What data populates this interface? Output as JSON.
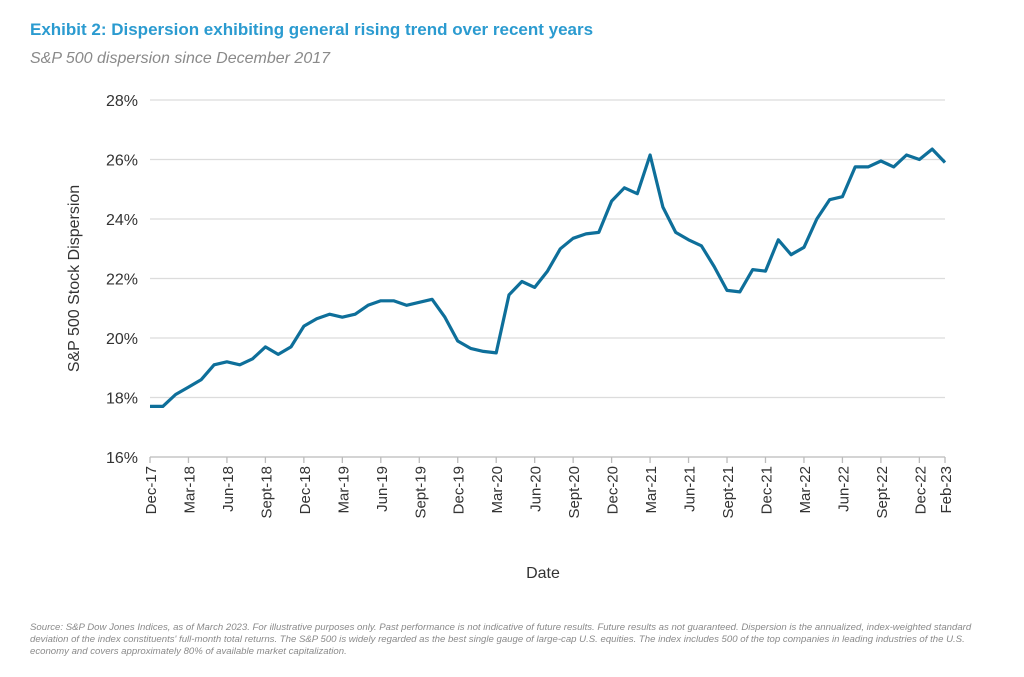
{
  "title": "Exhibit 2: Dispersion exhibiting general rising trend over recent years",
  "subtitle": "S&P 500 dispersion since December 2017",
  "footnote": "Source: S&P Dow Jones Indices, as of March 2023. For illustrative purposes only. Past performance is not indicative of future results. Future results as not guaranteed. Dispersion is the annualized, index-weighted standard deviation of the index constituents' full-month total returns. The S&P 500 is widely regarded as the best single gauge of large-cap U.S. equities. The index includes 500 of the top companies in leading industries of the U.S. economy and covers approximately 80% of available market capitalization.",
  "chart_data": {
    "type": "line",
    "xlabel": "Date",
    "ylabel": "S&P 500 Stock Dispersion",
    "ylim": [
      16,
      28
    ],
    "yticks": [
      "16%",
      "18%",
      "20%",
      "22%",
      "24%",
      "26%",
      "28%"
    ],
    "xticks": [
      "Dec-17",
      "Mar-18",
      "Jun-18",
      "Sept-18",
      "Dec-18",
      "Mar-19",
      "Jun-19",
      "Sept-19",
      "Dec-19",
      "Mar-20",
      "Jun-20",
      "Sept-20",
      "Dec-20",
      "Mar-21",
      "Jun-21",
      "Sept-21",
      "Dec-21",
      "Mar-22",
      "Jun-22",
      "Sept-22",
      "Dec-22",
      "Feb-23"
    ],
    "x_range": [
      "Dec-17",
      "Feb-23"
    ],
    "frequency": "monthly",
    "grid": true,
    "color": "#0e6f9a",
    "values": [
      17.7,
      17.7,
      18.1,
      18.35,
      18.6,
      19.1,
      19.2,
      19.1,
      19.3,
      19.7,
      19.45,
      19.7,
      20.4,
      20.65,
      20.8,
      20.7,
      20.8,
      21.1,
      21.25,
      21.25,
      21.1,
      21.2,
      21.3,
      20.7,
      19.9,
      19.65,
      19.55,
      19.5,
      21.45,
      21.9,
      21.7,
      22.25,
      23.0,
      23.35,
      23.5,
      23.55,
      24.6,
      25.05,
      24.85,
      26.15,
      24.4,
      23.55,
      23.3,
      23.1,
      22.4,
      21.6,
      21.55,
      22.3,
      22.25,
      23.3,
      22.8,
      23.05,
      24.0,
      24.65,
      24.75,
      25.75,
      25.75,
      25.95,
      25.75,
      26.15,
      26.0,
      26.35,
      25.9
    ]
  }
}
